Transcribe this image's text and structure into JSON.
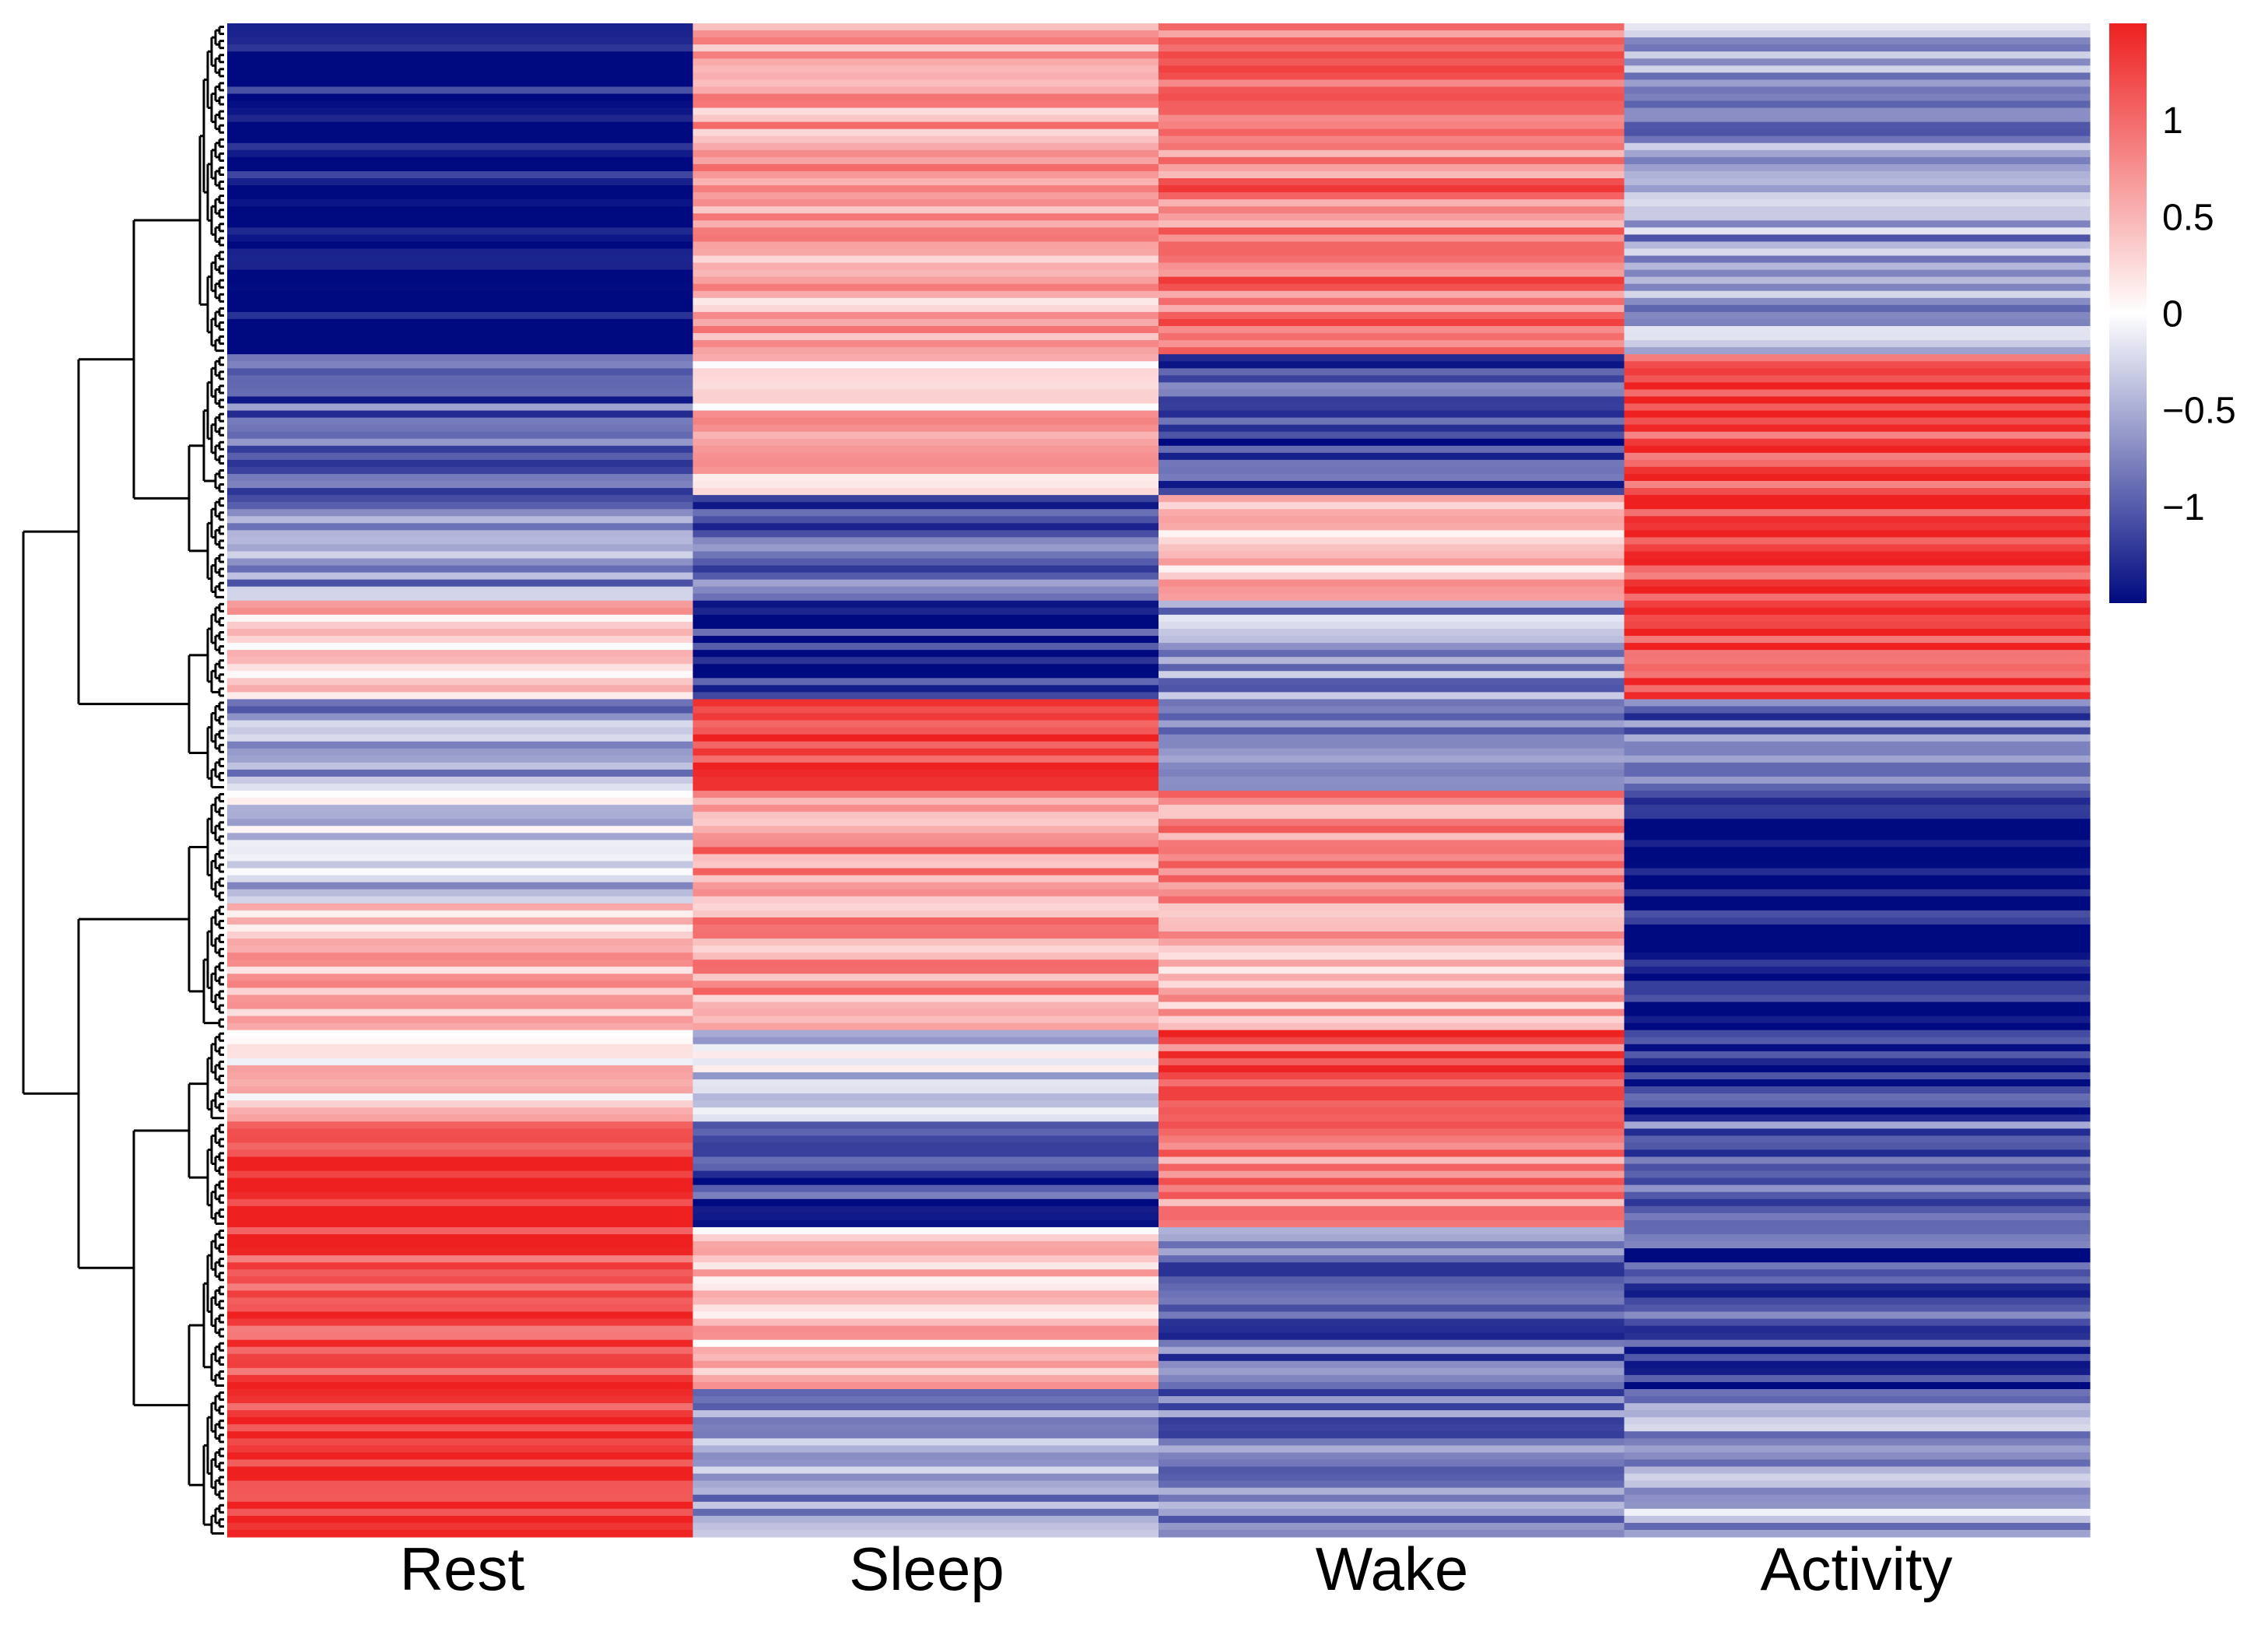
{
  "chart_data": {
    "type": "heatmap",
    "title": "",
    "xlabel": "",
    "ylabel": "",
    "columns": [
      "Rest",
      "Sleep",
      "Wake",
      "Activity"
    ],
    "row_dendrogram": true,
    "color_scale": {
      "min": -1.5,
      "max": 1.5,
      "low_color": "#000a80",
      "mid_color": "#ffffff",
      "high_color": "#ee2020",
      "ticks": [
        1,
        0.5,
        0,
        -0.5,
        -1
      ],
      "tick_labels": [
        "1",
        "0.5",
        "0",
        "−0.5",
        "−1"
      ]
    },
    "row_clusters": [
      {
        "rows": 47,
        "values": [
          -1.5,
          0.6,
          0.9,
          -0.6
        ]
      },
      {
        "rows": 20,
        "values": [
          -1.0,
          0.4,
          -1.1,
          1.2
        ]
      },
      {
        "rows": 15,
        "values": [
          -0.7,
          -1.0,
          0.5,
          1.3
        ]
      },
      {
        "rows": 14,
        "values": [
          0.4,
          -1.3,
          -0.6,
          1.3
        ]
      },
      {
        "rows": 13,
        "values": [
          -0.6,
          1.4,
          -0.6,
          -0.9
        ]
      },
      {
        "rows": 16,
        "values": [
          -0.3,
          0.8,
          0.7,
          -1.5
        ]
      },
      {
        "rows": 18,
        "values": [
          0.5,
          0.7,
          0.5,
          -1.5
        ]
      },
      {
        "rows": 13,
        "values": [
          0.2,
          -0.3,
          1.1,
          -1.3
        ]
      },
      {
        "rows": 15,
        "values": [
          1.4,
          -1.2,
          0.8,
          -0.9
        ]
      },
      {
        "rows": 23,
        "values": [
          1.3,
          0.4,
          -0.9,
          -1.1
        ]
      },
      {
        "rows": 21,
        "values": [
          1.4,
          -0.6,
          -0.8,
          -0.5
        ]
      }
    ],
    "cluster_tree": [
      [
        [
          0,
          [
            1,
            2
          ]
        ],
        [
          3,
          4
        ]
      ],
      [
        [
          5,
          6
        ],
        [
          [
            7,
            8
          ],
          [
            9,
            10
          ]
        ]
      ]
    ]
  }
}
